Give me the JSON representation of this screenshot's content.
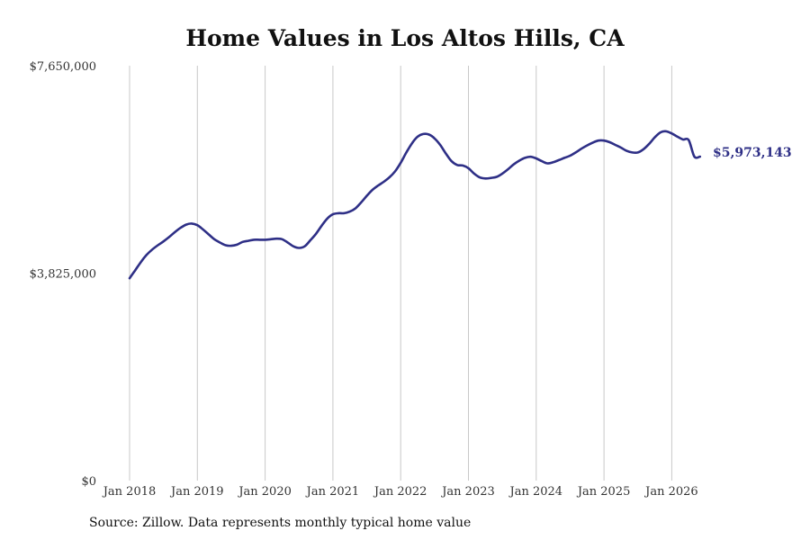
{
  "chart_data": {
    "type": "line",
    "title": "Home Values in Los Altos Hills, CA",
    "xlabel": "",
    "ylabel": "",
    "x_start": "2018-01",
    "x_end": "2026-06",
    "ylim": [
      0,
      7650000
    ],
    "y_ticks": [
      0,
      3825000,
      7650000
    ],
    "y_tick_labels": [
      "$0",
      "$3,825,000",
      "$7,650,000"
    ],
    "x_tick_labels": [
      "Jan 2018",
      "Jan 2019",
      "Jan 2020",
      "Jan 2021",
      "Jan 2022",
      "Jan 2023",
      "Jan 2024",
      "Jan 2025",
      "Jan 2026"
    ],
    "grid": "vertical",
    "line_color": "#2e2f86",
    "end_label": "$5,973,143",
    "series": [
      {
        "x": [
          "2018-01",
          "2018-02",
          "2018-03",
          "2018-04",
          "2018-05",
          "2018-06",
          "2018-07",
          "2018-08",
          "2018-09",
          "2018-10",
          "2018-11",
          "2018-12",
          "2019-01",
          "2019-02",
          "2019-03",
          "2019-04",
          "2019-05",
          "2019-06",
          "2019-07",
          "2019-08",
          "2019-09",
          "2019-10",
          "2019-11",
          "2019-12",
          "2020-01",
          "2020-02",
          "2020-03",
          "2020-04",
          "2020-05",
          "2020-06",
          "2020-07",
          "2020-08",
          "2020-09",
          "2020-10",
          "2020-11",
          "2020-12",
          "2021-01",
          "2021-02",
          "2021-03",
          "2021-04",
          "2021-05",
          "2021-06",
          "2021-07",
          "2021-08",
          "2021-09",
          "2021-10",
          "2021-11",
          "2021-12",
          "2022-01",
          "2022-02",
          "2022-03",
          "2022-04",
          "2022-05",
          "2022-06",
          "2022-07",
          "2022-08",
          "2022-09",
          "2022-10",
          "2022-11",
          "2022-12",
          "2023-01",
          "2023-02",
          "2023-03",
          "2023-04",
          "2023-05",
          "2023-06",
          "2023-07",
          "2023-08",
          "2023-09",
          "2023-10",
          "2023-11",
          "2023-12",
          "2024-01",
          "2024-02",
          "2024-03",
          "2024-04",
          "2024-05",
          "2024-06",
          "2024-07",
          "2024-08",
          "2024-09",
          "2024-10",
          "2024-11",
          "2024-12",
          "2025-01",
          "2025-02",
          "2025-03",
          "2025-04",
          "2025-05",
          "2025-06",
          "2025-07",
          "2025-08",
          "2025-09",
          "2025-10",
          "2025-11",
          "2025-12",
          "2026-01",
          "2026-02",
          "2026-03",
          "2026-04",
          "2026-05",
          "2026-06"
        ],
        "values": [
          3730000,
          3880000,
          4030000,
          4160000,
          4260000,
          4340000,
          4410000,
          4490000,
          4580000,
          4660000,
          4720000,
          4740000,
          4710000,
          4630000,
          4540000,
          4450000,
          4390000,
          4340000,
          4330000,
          4350000,
          4400000,
          4420000,
          4440000,
          4440000,
          4440000,
          4450000,
          4460000,
          4450000,
          4390000,
          4320000,
          4290000,
          4320000,
          4430000,
          4550000,
          4700000,
          4830000,
          4910000,
          4930000,
          4930000,
          4960000,
          5020000,
          5130000,
          5250000,
          5360000,
          5440000,
          5510000,
          5590000,
          5700000,
          5860000,
          6050000,
          6220000,
          6340000,
          6390000,
          6380000,
          6310000,
          6190000,
          6030000,
          5890000,
          5820000,
          5810000,
          5760000,
          5660000,
          5590000,
          5570000,
          5580000,
          5600000,
          5660000,
          5740000,
          5830000,
          5900000,
          5950000,
          5970000,
          5940000,
          5890000,
          5850000,
          5870000,
          5910000,
          5950000,
          5990000,
          6050000,
          6120000,
          6180000,
          6230000,
          6270000,
          6270000,
          6240000,
          6190000,
          6140000,
          6080000,
          6050000,
          6050000,
          6110000,
          6210000,
          6330000,
          6420000,
          6440000,
          6400000,
          6340000,
          6290000,
          6280000,
          5973143,
          5973143
        ]
      }
    ]
  },
  "footer": {
    "source": "Source: Zillow. Data represents monthly typical home value"
  }
}
